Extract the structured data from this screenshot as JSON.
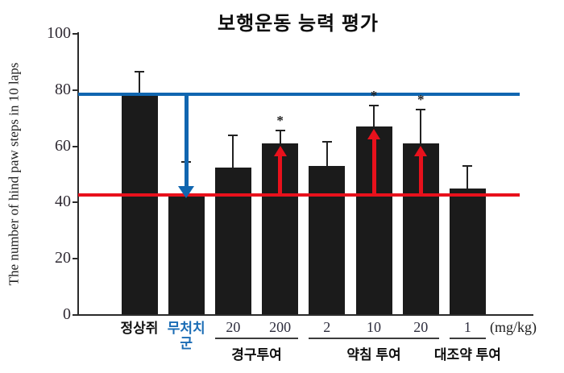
{
  "title": "보행운동 능력 평가",
  "y_axis_label": "The number of hind paw steps in 10 laps",
  "unit_label": "(mg/kg)",
  "colors": {
    "bar": "#1b1b1b",
    "axis": "#2b2b2b",
    "blue_line": "#1066b0",
    "red_line": "#e8111c",
    "blue_label_text": "#1a6cb5",
    "black_label_text": "#111111"
  },
  "chart_data": {
    "type": "bar",
    "title": "보행운동 능력 평가",
    "ylabel": "The number of hind paw steps in 10 laps",
    "xlabel": "",
    "unit": "(mg/kg)",
    "ylim": [
      0,
      100
    ],
    "yticks": [
      0,
      20,
      40,
      60,
      80,
      100
    ],
    "grid": false,
    "legend": "none",
    "significance_marker": "*",
    "bars": [
      {
        "tick_label": "정상쥐",
        "label_color": "#111111",
        "value": 78,
        "error_upper": 8.5,
        "significant": false,
        "arrow": null
      },
      {
        "tick_label": "무처치 군",
        "label_color": "#1a6cb5",
        "value": 43,
        "error_upper": 11.5,
        "significant": false,
        "arrow": "down"
      },
      {
        "tick_label": "20",
        "label_color": "#2d2d3d",
        "value": 52.5,
        "error_upper": 11.5,
        "significant": false,
        "arrow": null
      },
      {
        "tick_label": "200",
        "label_color": "#2d2d3d",
        "value": 61,
        "error_upper": 4.5,
        "significant": true,
        "arrow": "up"
      },
      {
        "tick_label": "2",
        "label_color": "#2d2d3d",
        "value": 53,
        "error_upper": 8.5,
        "significant": false,
        "arrow": null
      },
      {
        "tick_label": "10",
        "label_color": "#2d2d3d",
        "value": 67,
        "error_upper": 7.5,
        "significant": true,
        "arrow": "up"
      },
      {
        "tick_label": "20",
        "label_color": "#2d2d3d",
        "value": 61,
        "error_upper": 12,
        "significant": true,
        "arrow": "up"
      },
      {
        "tick_label": "1",
        "label_color": "#2d2d3d",
        "value": 45,
        "error_upper": 8,
        "significant": false,
        "arrow": null
      }
    ],
    "groups": [
      {
        "label": "경구투여",
        "bar_start": 2,
        "bar_end": 3
      },
      {
        "label": "약침 투여",
        "bar_start": 4,
        "bar_end": 6
      },
      {
        "label": "대조약 투여",
        "bar_start": 7,
        "bar_end": 7
      }
    ],
    "reference_lines": [
      {
        "name": "normal-group-level",
        "value": 78.5,
        "color": "#1066b0"
      },
      {
        "name": "untreated-group-level",
        "value": 42.8,
        "color": "#e8111c"
      }
    ],
    "arrows": [
      {
        "type": "down",
        "color": "#1066b0",
        "at_bar": 1,
        "from_value": 78.5,
        "to_value": 42.8
      },
      {
        "type": "up",
        "color": "#e8111c",
        "at_bar": 3,
        "from_value": 42.8,
        "to_value": 61
      },
      {
        "type": "up",
        "color": "#e8111c",
        "at_bar": 5,
        "from_value": 42.8,
        "to_value": 67
      },
      {
        "type": "up",
        "color": "#e8111c",
        "at_bar": 6,
        "from_value": 42.8,
        "to_value": 61
      }
    ]
  }
}
